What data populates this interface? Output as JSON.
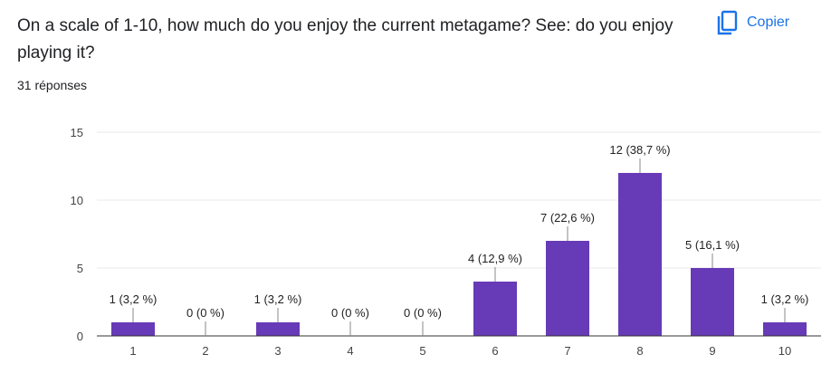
{
  "header": {
    "question": "On a scale of 1-10, how much do you enjoy the current metagame? See: do you enjoy playing it?",
    "responses": "31 réponses",
    "copy_label": "Copier",
    "copy_icon": "copy-icon"
  },
  "colors": {
    "bar": "#673ab7",
    "accent": "#1a73e8",
    "grid": "#e8e8e8",
    "axis": "#333333"
  },
  "chart_data": {
    "type": "bar",
    "categories": [
      "1",
      "2",
      "3",
      "4",
      "5",
      "6",
      "7",
      "8",
      "9",
      "10"
    ],
    "values": [
      1,
      0,
      1,
      0,
      0,
      4,
      7,
      12,
      5,
      1
    ],
    "data_labels": [
      "1 (3,2 %)",
      "0 (0 %)",
      "1 (3,2 %)",
      "0 (0 %)",
      "0 (0 %)",
      "4 (12,9 %)",
      "7 (22,6 %)",
      "12 (38,7 %)",
      "5 (16,1 %)",
      "1 (3,2 %)"
    ],
    "y_ticks": [
      "0",
      "5",
      "10",
      "15"
    ],
    "ylim": [
      0,
      15
    ],
    "grid": true,
    "title": "",
    "xlabel": "",
    "ylabel": ""
  }
}
